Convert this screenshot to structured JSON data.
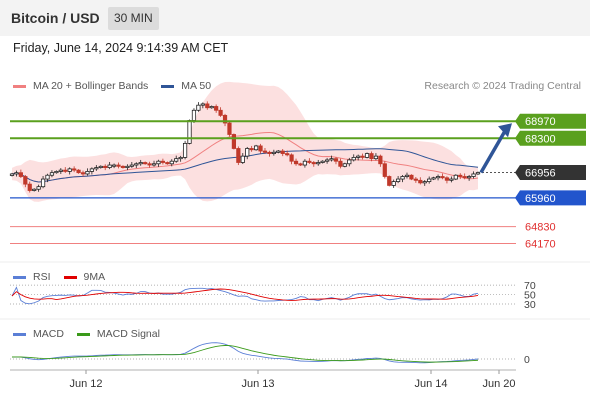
{
  "header": {
    "title": "Bitcoin / USD",
    "interval": "30 MIN"
  },
  "datetime": "Friday, June 14, 2024 9:14:39 AM CET",
  "price_legend": [
    {
      "label": "MA 20 + Bollinger Bands",
      "color": "#f08080"
    },
    {
      "label": "MA 50",
      "color": "#2f5597"
    }
  ],
  "research": "Research © 2024 Trading Central",
  "rsi_legend": [
    {
      "label": "RSI",
      "color": "#5b7fd6"
    },
    {
      "label": "9MA",
      "color": "#e00000"
    }
  ],
  "macd_legend": [
    {
      "label": "MACD",
      "color": "#5b7fd6"
    },
    {
      "label": "MACD Signal",
      "color": "#3a9a1a"
    }
  ],
  "colors": {
    "resistance": "#5aa01e",
    "support": "#2255cc",
    "weak_support": "#f08080",
    "current": "#333333",
    "arrow": "#2f5597",
    "candle_up": "#222222",
    "candle_down": "#c0392b"
  },
  "chart_data": {
    "type": "candlestick",
    "price_range": [
      63600,
      70000
    ],
    "current_price": 66956,
    "levels": [
      {
        "label": "68970",
        "value": 68970,
        "kind": "resistance"
      },
      {
        "label": "68300",
        "value": 68300,
        "kind": "resistance"
      },
      {
        "label": "66956",
        "value": 66956,
        "kind": "current"
      },
      {
        "label": "65960",
        "value": 65960,
        "kind": "support"
      },
      {
        "label": "64830",
        "value": 64830,
        "kind": "weak-support"
      },
      {
        "label": "64170",
        "value": 64170,
        "kind": "weak-support"
      }
    ],
    "arrow_target": 68970,
    "x_ticks": [
      "Jun 12",
      "Jun 13",
      "Jun 14",
      "Jun 20"
    ],
    "closes": [
      66900,
      66950,
      66800,
      66500,
      66250,
      66300,
      66400,
      66700,
      66850,
      66950,
      67000,
      67050,
      67000,
      67100,
      67050,
      66950,
      66900,
      67000,
      67100,
      67150,
      67200,
      67150,
      67250,
      67250,
      67200,
      67150,
      67200,
      67250,
      67300,
      67350,
      67300,
      67250,
      67300,
      67400,
      67350,
      67300,
      67400,
      67500,
      67550,
      68100,
      69000,
      69400,
      69600,
      69650,
      69500,
      69550,
      69400,
      69200,
      68900,
      68450,
      67900,
      67350,
      67600,
      67900,
      67850,
      68000,
      67800,
      67750,
      67700,
      67750,
      67800,
      67700,
      67650,
      67400,
      67300,
      67250,
      67400,
      67350,
      67300,
      67350,
      67400,
      67450,
      67500,
      67400,
      67200,
      67300,
      67450,
      67550,
      67600,
      67550,
      67700,
      67500,
      67600,
      67300,
      66800,
      66450,
      66600,
      66700,
      66800,
      66850,
      66700,
      66650,
      66550,
      66600,
      66700,
      66750,
      66800,
      66750,
      66650,
      66700,
      66850,
      66800,
      66750,
      66800,
      66900,
      66956
    ],
    "rsi_levels": [
      70,
      50,
      30
    ],
    "macd_zero": 0
  }
}
